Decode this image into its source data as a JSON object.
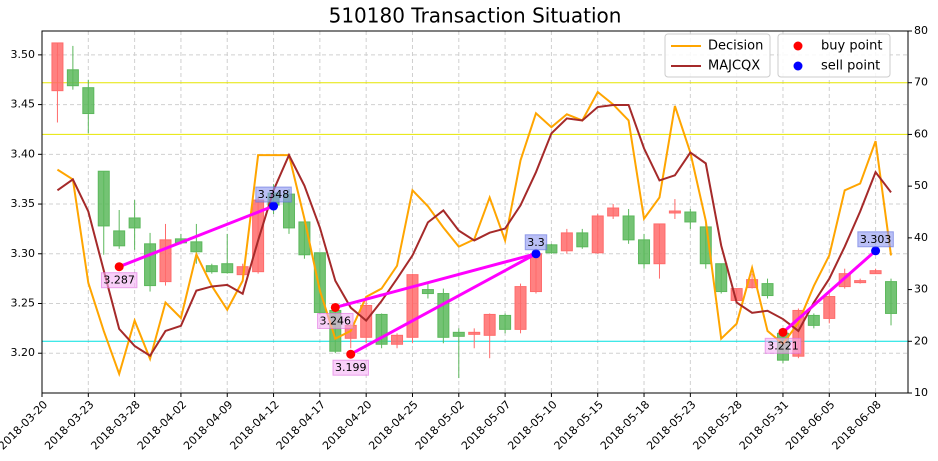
{
  "chart_data": {
    "type": "candlestick",
    "title": "510180 Transaction Situation",
    "categories": [
      "2018-03-20",
      null,
      null,
      "2018-03-23",
      null,
      null,
      "2018-03-28",
      null,
      null,
      "2018-04-02",
      null,
      null,
      "2018-04-09",
      null,
      null,
      "2018-04-12",
      null,
      null,
      "2018-04-17",
      null,
      null,
      "2018-04-20",
      null,
      null,
      "2018-04-25",
      null,
      null,
      "2018-05-02",
      null,
      null,
      "2018-05-07",
      null,
      null,
      "2018-05-10",
      null,
      null,
      "2018-05-15",
      null,
      null,
      "2018-05-18",
      null,
      null,
      "2018-05-23",
      null,
      null,
      "2018-05-28",
      null,
      null,
      "2018-05-31",
      null,
      null,
      "2018-06-05",
      null,
      null,
      "2018-06-08",
      null
    ],
    "open": [
      null,
      3.464,
      3.485,
      3.467,
      3.383,
      3.323,
      3.336,
      3.31,
      3.272,
      3.315,
      3.312,
      3.288,
      3.29,
      3.279,
      3.282,
      3.361,
      3.36,
      3.332,
      3.301,
      3.243,
      3.215,
      3.216,
      3.239,
      3.209,
      3.216,
      3.264,
      3.26,
      3.221,
      3.219,
      3.218,
      3.238,
      3.224,
      3.262,
      3.309,
      3.303,
      3.321,
      3.301,
      3.338,
      3.338,
      3.314,
      3.29,
      3.341,
      3.342,
      3.327,
      3.29,
      3.253,
      3.266,
      3.27,
      3.22,
      3.197,
      3.238,
      3.235,
      3.267,
      3.271,
      3.28,
      3.272
    ],
    "close": [
      null,
      3.512,
      3.469,
      3.441,
      3.328,
      3.308,
      3.326,
      3.268,
      3.314,
      3.311,
      3.302,
      3.282,
      3.281,
      3.287,
      3.354,
      3.349,
      3.326,
      3.299,
      3.241,
      3.202,
      3.228,
      3.248,
      3.209,
      3.218,
      3.279,
      3.26,
      3.216,
      3.217,
      3.221,
      3.239,
      3.224,
      3.267,
      3.3,
      3.301,
      3.321,
      3.307,
      3.338,
      3.346,
      3.314,
      3.29,
      3.33,
      3.343,
      3.332,
      3.29,
      3.262,
      3.265,
      3.274,
      3.258,
      3.193,
      3.243,
      3.228,
      3.257,
      3.28,
      3.273,
      3.283,
      3.24
    ],
    "high": [
      null,
      3.512,
      3.509,
      3.475,
      3.383,
      3.344,
      3.354,
      3.321,
      3.33,
      3.32,
      3.33,
      3.29,
      3.32,
      3.29,
      3.357,
      3.37,
      3.365,
      3.335,
      3.301,
      3.245,
      3.23,
      3.255,
      3.24,
      3.22,
      3.28,
      3.27,
      3.265,
      3.225,
      3.225,
      3.24,
      3.24,
      3.27,
      3.305,
      3.31,
      3.325,
      3.325,
      3.34,
      3.35,
      3.345,
      3.32,
      3.33,
      3.355,
      3.345,
      3.33,
      3.29,
      3.265,
      3.28,
      3.275,
      3.225,
      3.245,
      3.24,
      3.26,
      3.285,
      3.275,
      3.285,
      3.275
    ],
    "low": [
      null,
      3.432,
      3.465,
      3.421,
      3.299,
      3.305,
      3.304,
      3.262,
      3.268,
      3.31,
      3.29,
      3.28,
      3.28,
      3.275,
      3.28,
      3.34,
      3.32,
      3.295,
      3.24,
      3.2,
      3.205,
      3.21,
      3.205,
      3.205,
      3.21,
      3.255,
      3.21,
      3.175,
      3.205,
      3.195,
      3.22,
      3.22,
      3.26,
      3.3,
      3.3,
      3.305,
      3.3,
      3.335,
      3.31,
      3.285,
      3.275,
      3.335,
      3.325,
      3.285,
      3.26,
      3.25,
      3.265,
      3.255,
      3.19,
      3.195,
      3.225,
      3.23,
      3.265,
      3.27,
      3.28,
      3.228
    ],
    "up_color": "#ff6b6b",
    "down_color": "#5cb85c",
    "series": [
      {
        "name": "Decision",
        "color": "#ffa500",
        "axis": "y2",
        "values": [
          null,
          53.2,
          51.3,
          31.3,
          22.0,
          13.7,
          24.0,
          16.6,
          27.5,
          24.5,
          36.8,
          30.7,
          26.1,
          31.7,
          56.0,
          56.0,
          56.0,
          43.7,
          29.8,
          20.5,
          22.0,
          28.6,
          30.2,
          34.6,
          49.2,
          46.1,
          42.0,
          38.3,
          39.7,
          47.8,
          39.5,
          55.0,
          64.1,
          61.4,
          63.9,
          62.7,
          68.2,
          65.8,
          62.7,
          43.7,
          47.8,
          65.5,
          56.5,
          43.3,
          20.5,
          23.4,
          34.2,
          22.0,
          19.5,
          23.6,
          30.7,
          36.6,
          49.2,
          50.5,
          58.7,
          36.6
        ]
      },
      {
        "name": "MAJCQX",
        "color": "#a52a2a",
        "axis": "y2",
        "values": [
          null,
          49.2,
          51.3,
          45.1,
          33.7,
          22.4,
          19.1,
          17.2,
          22.0,
          23.0,
          29.8,
          30.6,
          30.9,
          29.2,
          39.5,
          49.2,
          56.0,
          50.1,
          42.0,
          31.7,
          26.5,
          24.0,
          27.8,
          32.1,
          36.6,
          43.0,
          45.3,
          41.4,
          39.5,
          41.0,
          41.8,
          46.3,
          52.7,
          60.2,
          63.1,
          62.7,
          65.3,
          65.7,
          65.7,
          57.3,
          51.1,
          52.1,
          56.5,
          54.4,
          38.5,
          27.5,
          25.5,
          25.9,
          24.3,
          22.0,
          27.5,
          32.1,
          38.3,
          45.1,
          52.7,
          48.8
        ]
      }
    ],
    "buy": {
      "name": "buy point",
      "color": "#ff0000",
      "x": [
        5,
        19,
        20,
        48
      ],
      "values": [
        3.287,
        3.246,
        3.199,
        3.221
      ]
    },
    "sell": {
      "name": "sell point",
      "color": "#0000ff",
      "x": [
        15,
        32,
        54
      ],
      "values": [
        3.348,
        3.3,
        3.303
      ]
    },
    "trade_color": "#ff00ff",
    "reference_lines": [
      {
        "value": 70,
        "axis": "y2",
        "color": "#e6e600"
      },
      {
        "value": 60,
        "axis": "y2",
        "color": "#e6e600"
      },
      {
        "value": 20,
        "axis": "y2",
        "color": "#00e0e0"
      }
    ],
    "ylim": [
      3.16,
      3.524
    ],
    "yticks": [
      {
        "value": 3.2,
        "label": "3.20"
      },
      3.25,
      {
        "value": 3.3,
        "label": "3.30"
      },
      3.35,
      {
        "value": 3.4,
        "label": "3.40"
      },
      3.45,
      {
        "value": 3.5,
        "label": "3.50"
      }
    ],
    "y2lim": [
      10,
      80
    ],
    "y2ticks": [
      10,
      20,
      30,
      40,
      50,
      60,
      70,
      80
    ],
    "grid": true,
    "legend": "upper right"
  }
}
